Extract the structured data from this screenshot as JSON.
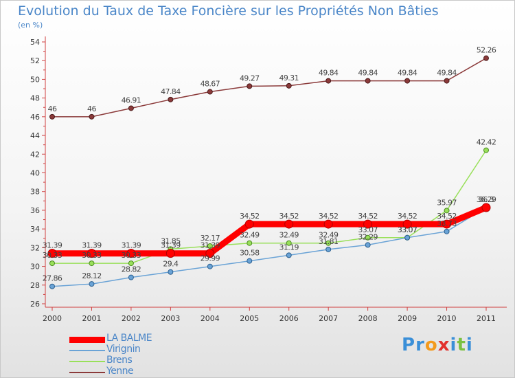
{
  "chart_data": {
    "type": "line",
    "title": "Evolution du Taux de Taxe Foncière sur les Propriétés Non Bâties",
    "ylabel": "(en %)",
    "xlabel": "",
    "categories": [
      "2000",
      "2001",
      "2002",
      "2003",
      "2004",
      "2005",
      "2006",
      "2007",
      "2008",
      "2009",
      "2010",
      "2011"
    ],
    "ylim": [
      26,
      54
    ],
    "yticks": [
      26,
      28,
      30,
      32,
      34,
      36,
      38,
      40,
      42,
      44,
      46,
      48,
      50,
      52,
      54
    ],
    "grid": false,
    "legend_position": "bottom-left",
    "series": [
      {
        "name": "LA BALME",
        "color": "#ff0000",
        "values": [
          31.39,
          31.39,
          31.39,
          31.39,
          31.39,
          34.52,
          34.52,
          34.52,
          34.52,
          34.52,
          34.52,
          36.29
        ],
        "labels": [
          "31.39",
          "31.39",
          "31.39",
          "31.39",
          "31.39",
          "34.52",
          "34.52",
          "34.52",
          "34.52",
          "34.52",
          "34.52",
          "36.29"
        ]
      },
      {
        "name": "Virignin",
        "color": "#6aa3d6",
        "values": [
          27.86,
          28.12,
          28.82,
          29.4,
          29.99,
          30.58,
          31.19,
          31.81,
          32.29,
          33.07,
          33.73,
          36.3
        ],
        "labels": [
          "27.86",
          "28.12",
          "28.82",
          "29.4",
          "29.99",
          "30.58",
          "31.19",
          "31.81",
          "32.29",
          "33.07",
          "33.73",
          "36.3"
        ]
      },
      {
        "name": "Brens",
        "color": "#99e05a",
        "values": [
          30.33,
          30.33,
          30.33,
          31.85,
          32.17,
          32.49,
          32.49,
          32.49,
          33.07,
          33.07,
          35.97,
          42.42
        ],
        "labels": [
          "30.33",
          "30.33",
          "30.33",
          "31.85",
          "32.17",
          "32.49",
          "32.49",
          "32.49",
          "33.07",
          "33.07",
          "35.97",
          "42.42"
        ]
      },
      {
        "name": "Yenne",
        "color": "#8b3a3a",
        "values": [
          46,
          46,
          46.91,
          47.84,
          48.67,
          49.27,
          49.31,
          49.84,
          49.84,
          49.84,
          49.84,
          52.26
        ],
        "labels": [
          "46",
          "46",
          "46.91",
          "47.84",
          "48.67",
          "49.27",
          "49.31",
          "49.84",
          "49.84",
          "49.84",
          "49.84",
          "52.26"
        ]
      }
    ]
  },
  "brand": {
    "name": "Proxiti",
    "letters": [
      "P",
      "r",
      "o",
      "x",
      "i",
      "t",
      "i"
    ],
    "colors": [
      "#3a8fd8",
      "#3a8fd8",
      "#f39a1d",
      "#e2312d",
      "#3a8fd8",
      "#7bc142",
      "#3a8fd8"
    ]
  }
}
